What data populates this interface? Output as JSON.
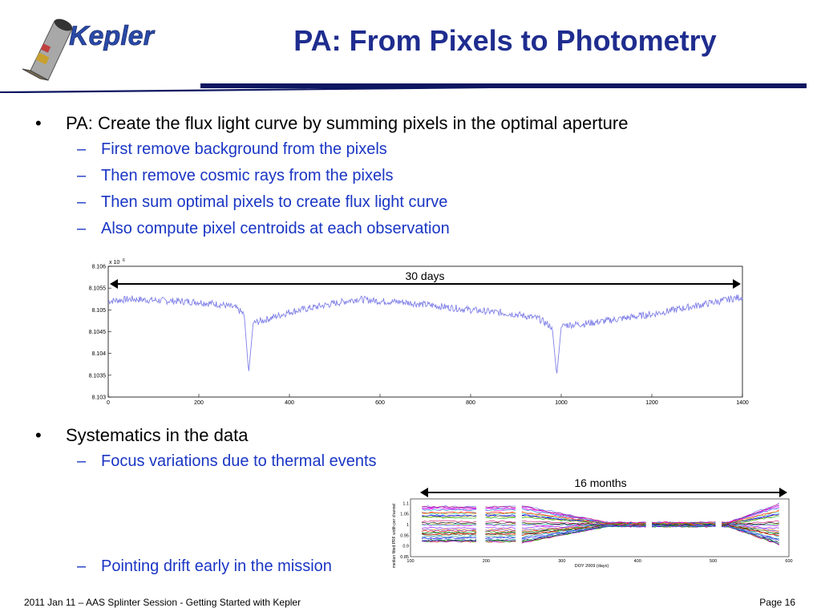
{
  "header": {
    "logo_text": "Kepler",
    "title": "PA: From Pixels to Photometry"
  },
  "bullets": [
    {
      "text": "PA: Create the flux light curve by summing pixels in the optimal aperture",
      "subs": [
        "First remove background from the pixels",
        "Then remove cosmic rays from the pixels",
        "Then sum optimal pixels to create flux light curve",
        "Also compute pixel centroids at each observation"
      ]
    },
    {
      "text": "Systematics in the data",
      "subs": [
        "Focus variations due to thermal events",
        "Pointing drift early in the mission"
      ]
    }
  ],
  "footer": {
    "left": "2011 Jan 11 – AAS Splinter Session - Getting Started with Kepler",
    "right": "Page 16"
  },
  "colors": {
    "title": "#1f2d8f",
    "sub_bullet": "#1a36c4",
    "light_curve": "#8080e8"
  },
  "chart_data": [
    {
      "type": "line",
      "title": "",
      "xlabel": "",
      "ylabel": "",
      "y_multiplier_label": "x 10",
      "y_multiplier_exponent": "6",
      "xlim": [
        0,
        1400
      ],
      "ylim": [
        8.103,
        8.106
      ],
      "x_ticks": [
        0,
        200,
        400,
        600,
        800,
        1000,
        1200,
        1400
      ],
      "y_ticks": [
        "8.103",
        "8.1035",
        "8.104",
        "8.1045",
        "8.105",
        "8.1055",
        "8.106"
      ],
      "annotation": "30 days",
      "series": [
        {
          "x": [
            0,
            50,
            100,
            150,
            200,
            250,
            280,
            300,
            310,
            320,
            340,
            400,
            450,
            500,
            550,
            600,
            650,
            700,
            800,
            900,
            950,
            980,
            990,
            1000,
            1010,
            1050,
            1100,
            1200,
            1300,
            1400
          ],
          "y": [
            8.1052,
            8.10525,
            8.10522,
            8.1052,
            8.10518,
            8.10512,
            8.10505,
            8.1049,
            8.10355,
            8.1047,
            8.10475,
            8.10495,
            8.10505,
            8.10515,
            8.10525,
            8.1052,
            8.10518,
            8.10512,
            8.105,
            8.1049,
            8.1048,
            8.1046,
            8.1035,
            8.1046,
            8.10465,
            8.10468,
            8.10475,
            8.1049,
            8.1051,
            8.1053
          ]
        }
      ]
    },
    {
      "type": "line",
      "title": "",
      "xlabel": "DOY 2009 (days)",
      "ylabel": "median fitted PRF width per channel",
      "xlim": [
        100,
        600
      ],
      "ylim": [
        0.85,
        1.12
      ],
      "x_ticks": [
        100,
        200,
        300,
        400,
        500,
        600
      ],
      "y_ticks": [
        "0.85",
        "0.9",
        "0.95",
        "1",
        "1.05",
        "1.1"
      ],
      "annotation": "16 months"
    }
  ]
}
